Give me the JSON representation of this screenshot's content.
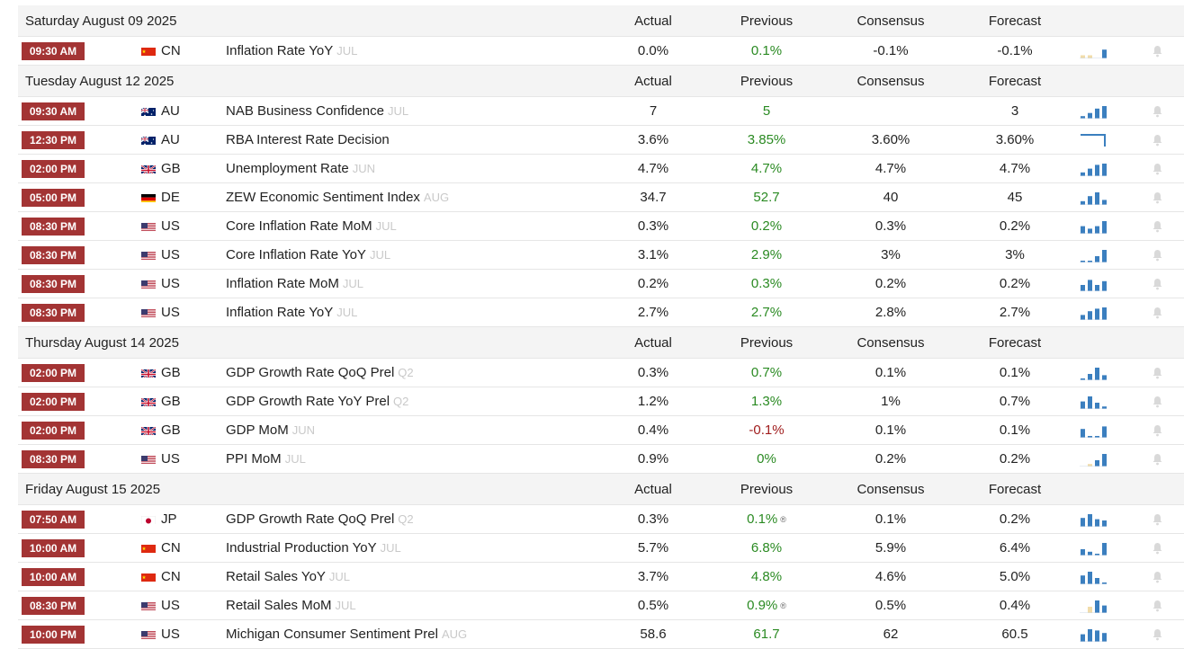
{
  "columns": {
    "actual": "Actual",
    "previous": "Previous",
    "consensus": "Consensus",
    "forecast": "Forecast"
  },
  "groups": [
    {
      "date": "Saturday August 09 2025",
      "rows": [
        {
          "time": "09:30 AM",
          "country": "CN",
          "event": "Inflation Rate YoY",
          "ref": "JUL",
          "actual": "0.0%",
          "previous": "0.1%",
          "previous_tone": "pos",
          "consensus": "-0.1%",
          "forecast": "-0.1%",
          "spark": [
            0.25,
            0.25,
            0.45,
            0.7
          ],
          "spark_type": "mixed",
          "spark_colors": [
            "#f1dcaa",
            "#f1dcaa",
            "#ffffff",
            "#3b7fbf"
          ]
        }
      ]
    },
    {
      "date": "Tuesday August 12 2025",
      "rows": [
        {
          "time": "09:30 AM",
          "country": "AU",
          "event": "NAB Business Confidence",
          "ref": "JUL",
          "actual": "7",
          "previous": "5",
          "previous_tone": "pos",
          "consensus": "",
          "forecast": "3",
          "spark": [
            0.2,
            0.45,
            0.8,
            1
          ],
          "spark_type": "bar"
        },
        {
          "time": "12:30 PM",
          "country": "AU",
          "event": "RBA Interest Rate Decision",
          "ref": "",
          "actual": "3.6%",
          "previous": "3.85%",
          "previous_tone": "pos",
          "consensus": "3.60%",
          "forecast": "3.60%",
          "spark": [
            1,
            1,
            1,
            0.4
          ],
          "spark_type": "step"
        },
        {
          "time": "02:00 PM",
          "country": "GB",
          "event": "Unemployment Rate",
          "ref": "JUN",
          "actual": "4.7%",
          "previous": "4.7%",
          "previous_tone": "pos",
          "consensus": "4.7%",
          "forecast": "4.7%",
          "spark": [
            0.3,
            0.6,
            0.9,
            1
          ],
          "spark_type": "bar"
        },
        {
          "time": "05:00 PM",
          "country": "DE",
          "event": "ZEW Economic Sentiment Index",
          "ref": "AUG",
          "actual": "34.7",
          "previous": "52.7",
          "previous_tone": "pos",
          "consensus": "40",
          "forecast": "45",
          "spark": [
            0.3,
            0.7,
            1,
            0.4
          ],
          "spark_type": "bar"
        },
        {
          "time": "08:30 PM",
          "country": "US",
          "event": "Core Inflation Rate MoM",
          "ref": "JUL",
          "actual": "0.3%",
          "previous": "0.2%",
          "previous_tone": "pos",
          "consensus": "0.3%",
          "forecast": "0.2%",
          "spark": [
            0.6,
            0.4,
            0.6,
            1
          ],
          "spark_type": "bar"
        },
        {
          "time": "08:30 PM",
          "country": "US",
          "event": "Core Inflation Rate YoY",
          "ref": "JUL",
          "actual": "3.1%",
          "previous": "2.9%",
          "previous_tone": "pos",
          "consensus": "3%",
          "forecast": "3%",
          "spark": [
            0.1,
            0.1,
            0.5,
            1
          ],
          "spark_type": "bar"
        },
        {
          "time": "08:30 PM",
          "country": "US",
          "event": "Inflation Rate MoM",
          "ref": "JUL",
          "actual": "0.2%",
          "previous": "0.3%",
          "previous_tone": "pos",
          "consensus": "0.2%",
          "forecast": "0.2%",
          "spark": [
            0.5,
            0.9,
            0.5,
            0.8
          ],
          "spark_type": "bar"
        },
        {
          "time": "08:30 PM",
          "country": "US",
          "event": "Inflation Rate YoY",
          "ref": "JUL",
          "actual": "2.7%",
          "previous": "2.7%",
          "previous_tone": "pos",
          "consensus": "2.8%",
          "forecast": "2.7%",
          "spark": [
            0.4,
            0.7,
            0.9,
            1
          ],
          "spark_type": "bar"
        }
      ]
    },
    {
      "date": "Thursday August 14 2025",
      "rows": [
        {
          "time": "02:00 PM",
          "country": "GB",
          "event": "GDP Growth Rate QoQ Prel",
          "ref": "Q2",
          "actual": "0.3%",
          "previous": "0.7%",
          "previous_tone": "pos",
          "consensus": "0.1%",
          "forecast": "0.1%",
          "spark": [
            0.1,
            0.5,
            1,
            0.4
          ],
          "spark_type": "bar"
        },
        {
          "time": "02:00 PM",
          "country": "GB",
          "event": "GDP Growth Rate YoY Prel",
          "ref": "Q2",
          "actual": "1.2%",
          "previous": "1.3%",
          "previous_tone": "pos",
          "consensus": "1%",
          "forecast": "0.7%",
          "spark": [
            0.6,
            1,
            0.5,
            0.2
          ],
          "spark_type": "bar"
        },
        {
          "time": "02:00 PM",
          "country": "GB",
          "event": "GDP MoM",
          "ref": "JUN",
          "actual": "0.4%",
          "previous": "-0.1%",
          "previous_tone": "neg",
          "consensus": "0.1%",
          "forecast": "0.1%",
          "spark": [
            0.7,
            0.1,
            0.1,
            0.9
          ],
          "spark_type": "bar"
        },
        {
          "time": "08:30 PM",
          "country": "US",
          "event": "PPI MoM",
          "ref": "JUL",
          "actual": "0.9%",
          "previous": "0%",
          "previous_tone": "pos",
          "consensus": "0.2%",
          "forecast": "0.2%",
          "spark": [
            0.1,
            0.2,
            0.5,
            1
          ],
          "spark_type": "mixed",
          "spark_colors": [
            "#ffffff",
            "#f1dcaa",
            "#3b7fbf",
            "#3b7fbf"
          ]
        }
      ]
    },
    {
      "date": "Friday August 15 2025",
      "rows": [
        {
          "time": "07:50 AM",
          "country": "JP",
          "event": "GDP Growth Rate QoQ Prel",
          "ref": "Q2",
          "actual": "0.3%",
          "previous": "0.1%",
          "previous_tone": "pos",
          "previous_mark": "®",
          "consensus": "0.1%",
          "forecast": "0.2%",
          "spark": [
            0.7,
            1,
            0.6,
            0.5
          ],
          "spark_type": "bar"
        },
        {
          "time": "10:00 AM",
          "country": "CN",
          "event": "Industrial Production YoY",
          "ref": "JUL",
          "actual": "5.7%",
          "previous": "6.8%",
          "previous_tone": "pos",
          "consensus": "5.9%",
          "forecast": "6.4%",
          "spark": [
            0.5,
            0.3,
            0.1,
            1
          ],
          "spark_type": "bar"
        },
        {
          "time": "10:00 AM",
          "country": "CN",
          "event": "Retail Sales YoY",
          "ref": "JUL",
          "actual": "3.7%",
          "previous": "4.8%",
          "previous_tone": "pos",
          "consensus": "4.6%",
          "forecast": "5.0%",
          "spark": [
            0.7,
            1,
            0.5,
            0.1
          ],
          "spark_type": "bar"
        },
        {
          "time": "08:30 PM",
          "country": "US",
          "event": "Retail Sales MoM",
          "ref": "JUL",
          "actual": "0.5%",
          "previous": "0.9%",
          "previous_tone": "pos",
          "previous_mark": "®",
          "consensus": "0.5%",
          "forecast": "0.4%",
          "spark": [
            0.2,
            0.5,
            1,
            0.6
          ],
          "spark_type": "mixed",
          "spark_colors": [
            "#ffffff",
            "#f1dcaa",
            "#3b7fbf",
            "#3b7fbf"
          ]
        },
        {
          "time": "10:00 PM",
          "country": "US",
          "event": "Michigan Consumer Sentiment Prel",
          "ref": "AUG",
          "actual": "58.6",
          "previous": "61.7",
          "previous_tone": "pos",
          "consensus": "62",
          "forecast": "60.5",
          "spark": [
            0.6,
            1,
            0.9,
            0.7
          ],
          "spark_type": "bar"
        }
      ]
    }
  ],
  "colors": {
    "time_bg": "#a33434",
    "positive": "#2a8a22",
    "negative": "#a01d1d",
    "spark": "#3b7fbf",
    "bell": "#d9d9d9"
  },
  "icons": {
    "bell": "bell-icon",
    "revised": "registered-mark"
  }
}
